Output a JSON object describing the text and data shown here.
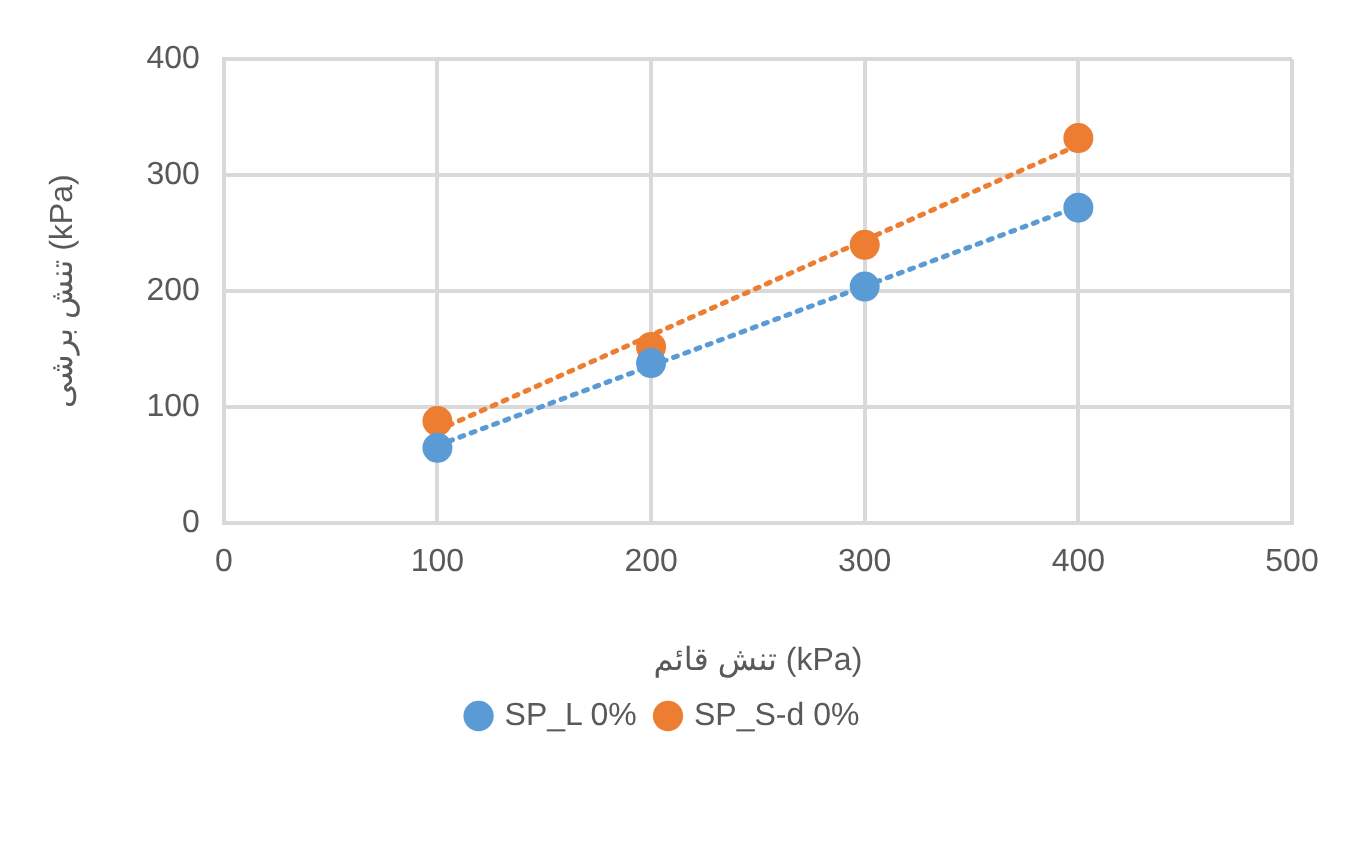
{
  "chart_data": {
    "type": "scatter",
    "xlabel": "تنش قائم (kPa)",
    "ylabel": "تنش برشی (kPa)",
    "xlim": [
      0,
      500
    ],
    "xticks": [
      0,
      100,
      200,
      300,
      400,
      500
    ],
    "ylim": [
      0,
      400
    ],
    "yticks": [
      0,
      100,
      200,
      300,
      400
    ],
    "grid": true,
    "legend": "bottom",
    "marker": "circle",
    "series": [
      {
        "name": "SP_L 0%",
        "color": "#5b9bd5",
        "x": [
          100,
          200,
          300,
          400
        ],
        "values": [
          65,
          138,
          204,
          272
        ]
      },
      {
        "name": "SP_S-d 0%",
        "color": "#ed7d31",
        "x": [
          100,
          200,
          300,
          400
        ],
        "values": [
          88,
          152,
          240,
          332
        ]
      },
      {
        "type": "line",
        "color": "#5b9bd5",
        "x": [
          100,
          400
        ],
        "values": [
          67,
          273
        ],
        "marker": "none",
        "line_style": "dotted"
      },
      {
        "type": "line",
        "color": "#ed7d31",
        "x": [
          100,
          400
        ],
        "values": [
          80,
          326
        ],
        "marker": "none",
        "line_style": "dotted"
      }
    ]
  }
}
